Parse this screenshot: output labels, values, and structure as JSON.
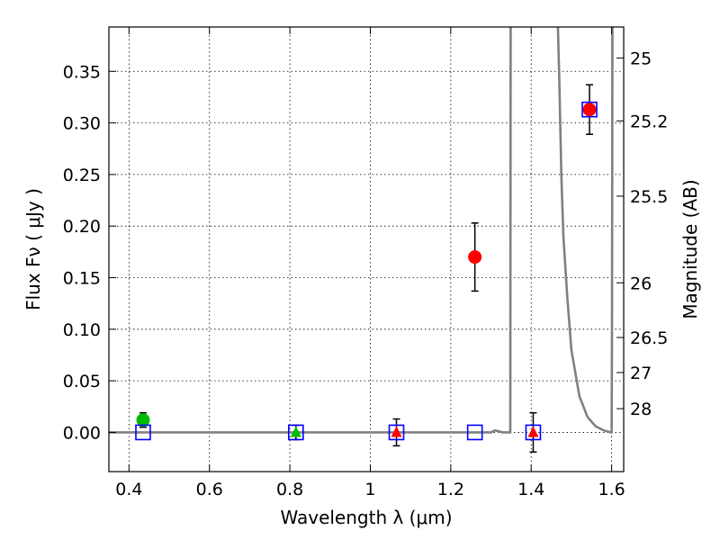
{
  "chart_data": {
    "type": "scatter",
    "xlabel": "Wavelength  λ (μm)",
    "ylabel": "Flux  Fν  ( μJy )",
    "y2label": "Magnitude (AB)",
    "xlim": [
      0.35,
      1.63
    ],
    "ylim": [
      -0.038,
      0.393
    ],
    "grid": true,
    "x_ticks": [
      0.4,
      0.6,
      0.8,
      1.0,
      1.2,
      1.4,
      1.6
    ],
    "x_tick_labels": [
      "0.4",
      "0.6",
      "0.8",
      "1",
      "1.2",
      "1.4",
      "1.6"
    ],
    "y_ticks": [
      0.0,
      0.05,
      0.1,
      0.15,
      0.2,
      0.25,
      0.3,
      0.35
    ],
    "y_tick_labels": [
      "0.00",
      "0.05",
      "0.10",
      "0.15",
      "0.20",
      "0.25",
      "0.30",
      "0.35"
    ],
    "y2_ticks": [
      {
        "flux": 0.363,
        "label": "25"
      },
      {
        "flux": 0.302,
        "label": "25.2"
      },
      {
        "flux": 0.229,
        "label": "25.5"
      },
      {
        "flux": 0.145,
        "label": "26"
      },
      {
        "flux": 0.092,
        "label": "26.5"
      },
      {
        "flux": 0.058,
        "label": "27"
      },
      {
        "flux": 0.023,
        "label": "28"
      }
    ],
    "colors": {
      "model_line": "#808080",
      "circle": "#ff0000",
      "circle_green": "#00bb00",
      "triangle": "#ff0000",
      "triangle_green": "#00bb00",
      "square": "#0000ff",
      "errorbar": "#000000"
    },
    "series": [
      {
        "marker": "circle",
        "points": [
          {
            "x": 0.435,
            "y": 0.012,
            "err": 0.007,
            "color": "green"
          },
          {
            "x": 1.26,
            "y": 0.17,
            "err": 0.033,
            "color": "red"
          },
          {
            "x": 1.545,
            "y": 0.313,
            "err": 0.024,
            "color": "red"
          }
        ]
      },
      {
        "marker": "triangle",
        "points": [
          {
            "x": 0.815,
            "y": 0.0,
            "err": 0.007,
            "color": "green"
          },
          {
            "x": 1.065,
            "y": 0.0,
            "err": 0.013,
            "color": "red"
          },
          {
            "x": 1.405,
            "y": 0.0,
            "err": 0.019,
            "color": "red"
          }
        ]
      },
      {
        "marker": "square",
        "points": [
          {
            "x": 0.435,
            "y": 0.0
          },
          {
            "x": 0.815,
            "y": 0.0
          },
          {
            "x": 1.065,
            "y": 0.0
          },
          {
            "x": 1.26,
            "y": 0.0
          },
          {
            "x": 1.405,
            "y": 0.0
          },
          {
            "x": 1.545,
            "y": 0.313
          }
        ]
      }
    ],
    "model_line": {
      "x": [
        0.35,
        1.3,
        1.31,
        1.33,
        1.348,
        1.349,
        1.351,
        1.466,
        1.47,
        1.475,
        1.48,
        1.49,
        1.5,
        1.52,
        1.54,
        1.56,
        1.58,
        1.598,
        1.6,
        1.601,
        1.602
      ],
      "y": [
        0.0,
        0.0,
        0.002,
        0.0,
        0.0,
        0.4,
        0.4,
        0.4,
        0.34,
        0.25,
        0.19,
        0.13,
        0.08,
        0.035,
        0.015,
        0.006,
        0.002,
        0.0,
        0.0,
        0.1,
        0.4
      ]
    }
  }
}
